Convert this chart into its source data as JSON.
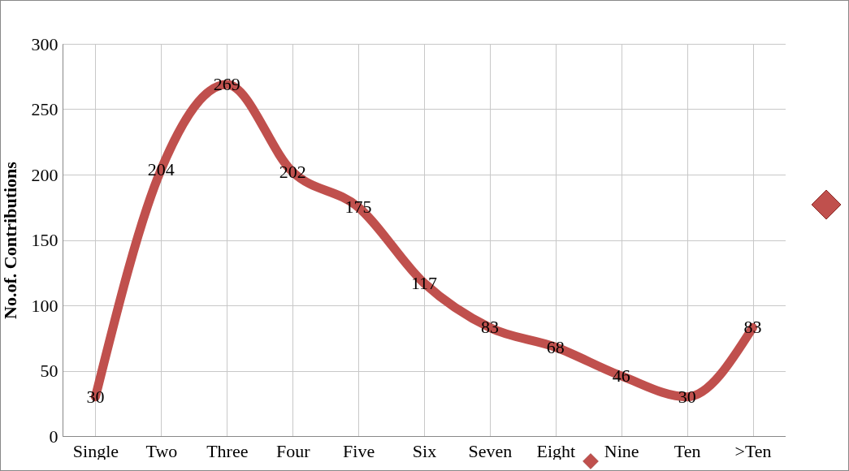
{
  "chart_data": {
    "type": "line",
    "ylabel": "No.of. Contributions",
    "categories": [
      "Single",
      "Two",
      "Three",
      "Four",
      "Five",
      "Six",
      "Seven",
      "Eight",
      "Nine",
      "Ten",
      ">Ten"
    ],
    "series": [
      {
        "color": "#c0504d",
        "values": [
          30,
          204,
          269,
          202,
          175,
          117,
          83,
          68,
          46,
          30,
          83
        ]
      }
    ],
    "ylim": [
      0,
      300
    ],
    "yticks": [
      0,
      50,
      100,
      150,
      200,
      250,
      300
    ],
    "grid": true,
    "data_labels": true,
    "line_style": "solid"
  }
}
